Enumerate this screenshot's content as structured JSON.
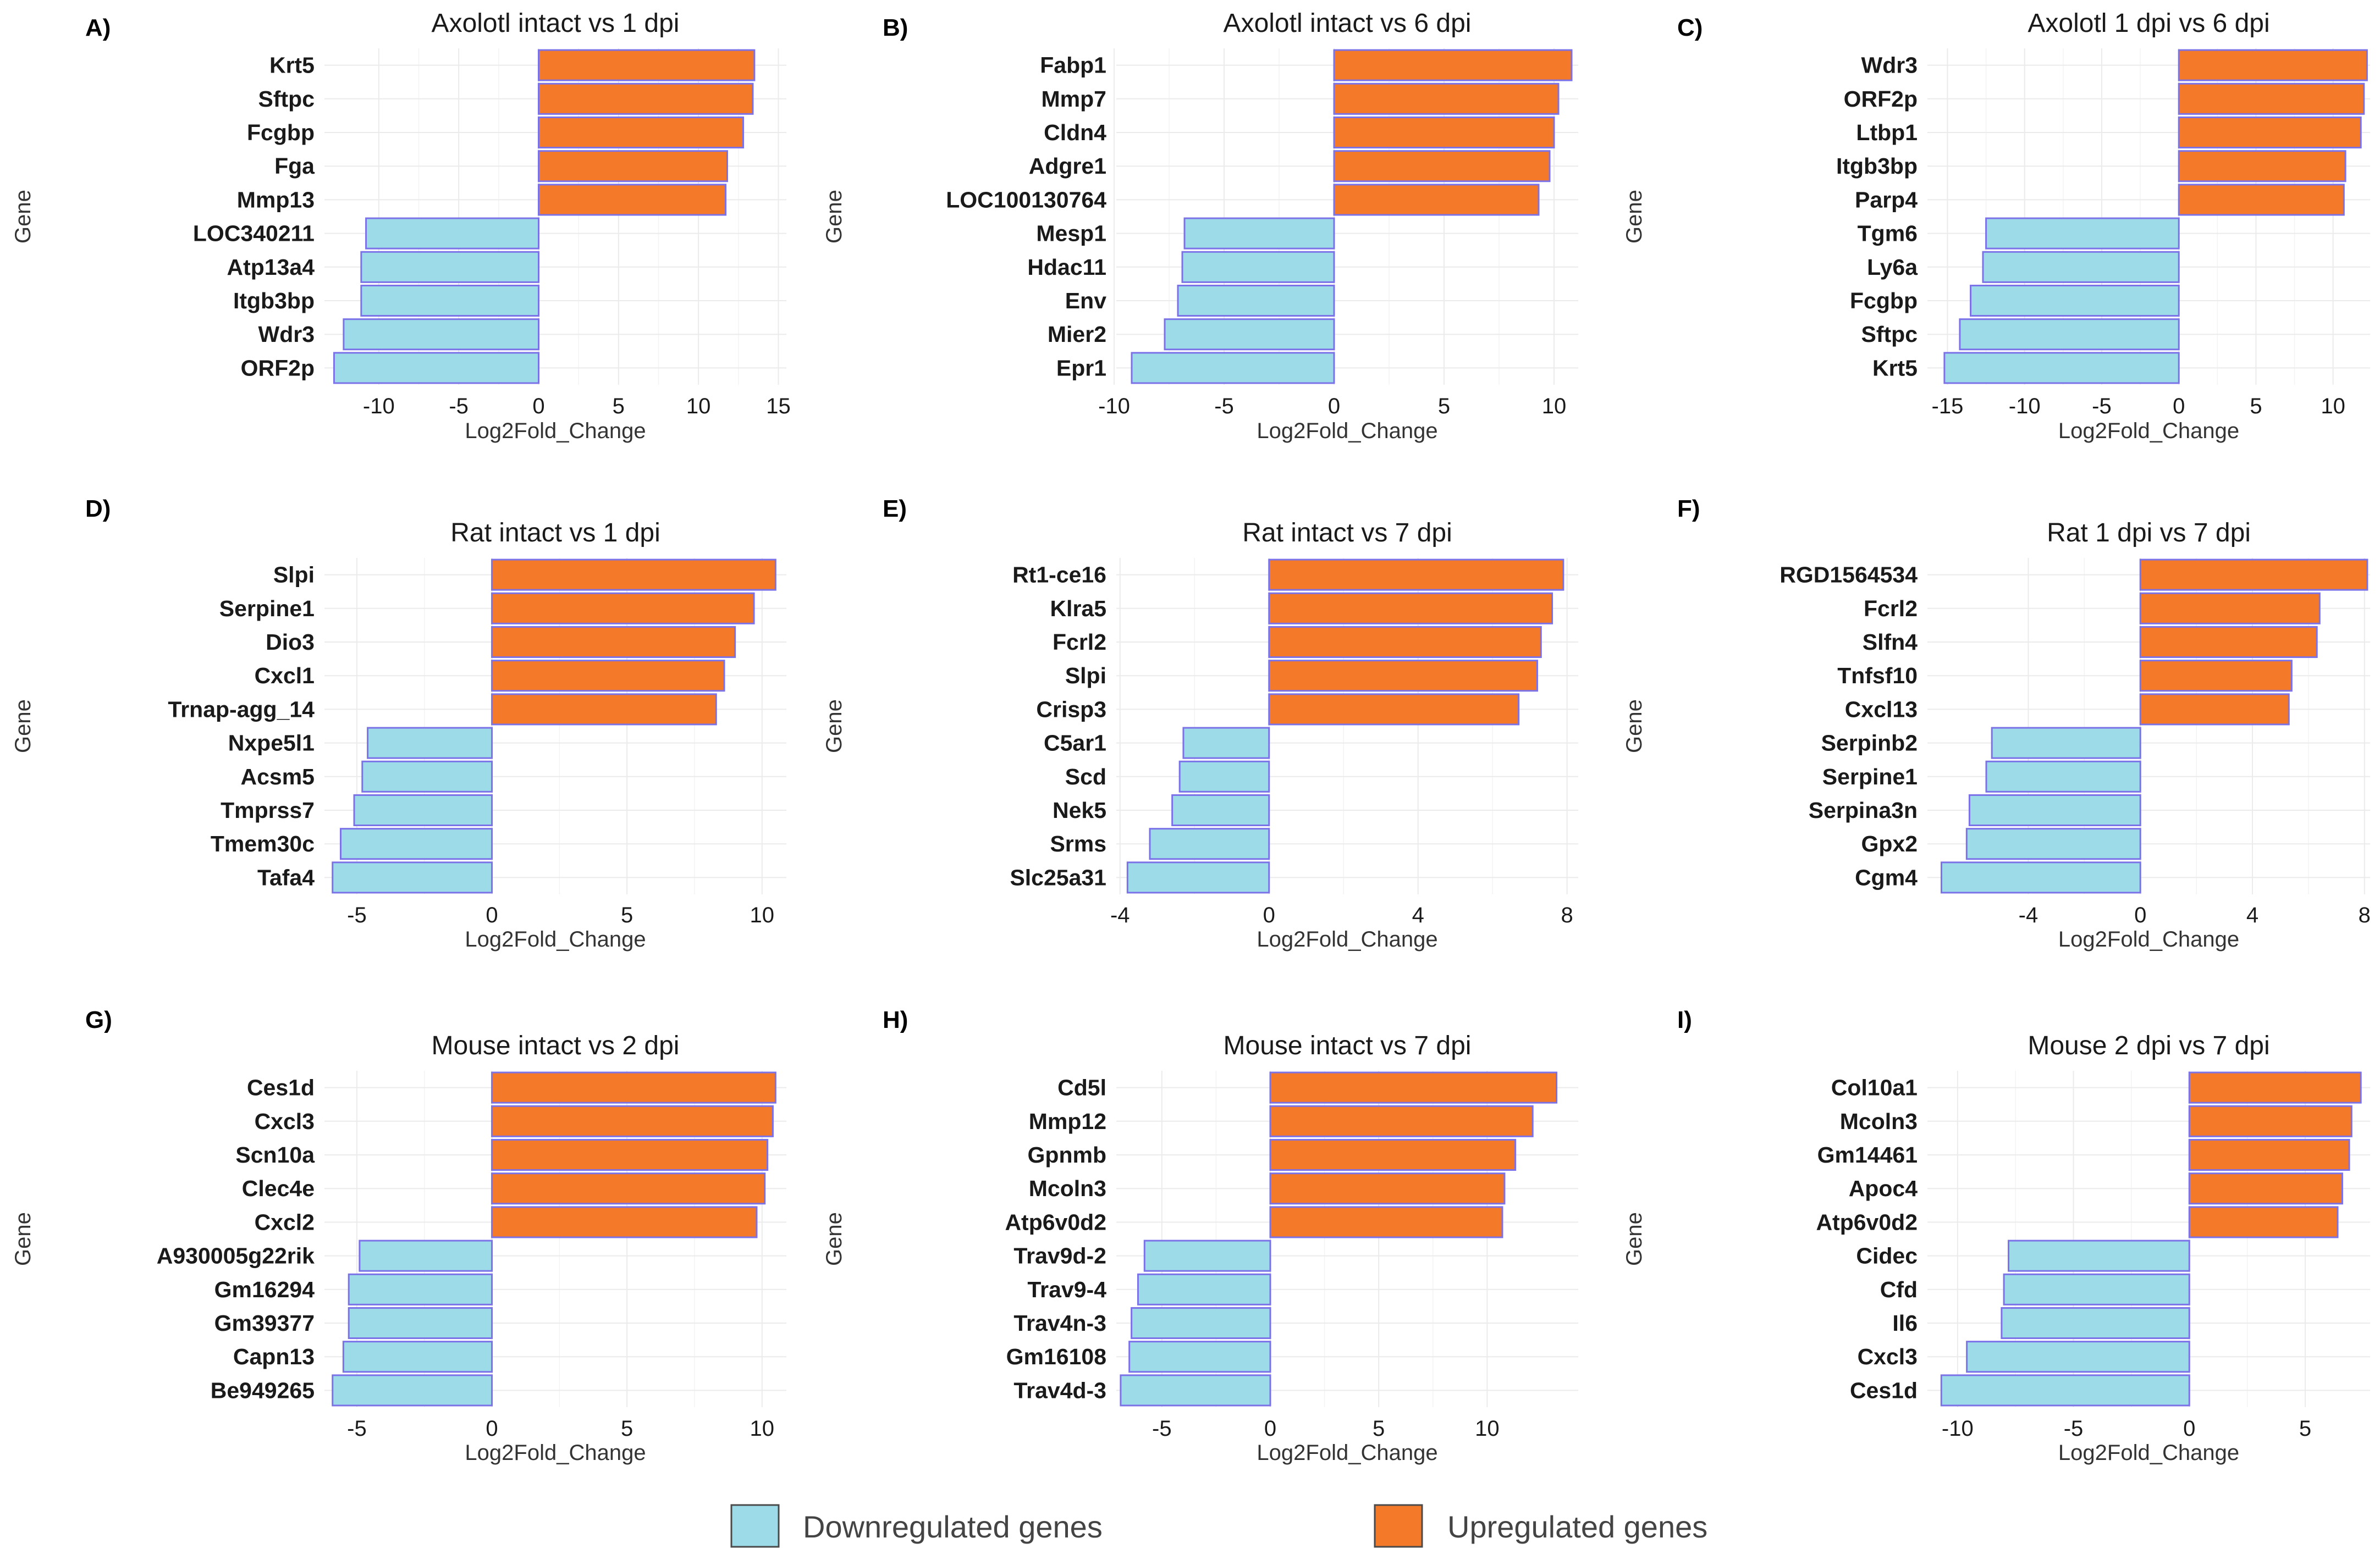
{
  "figure": {
    "legend": {
      "down_label": "Downregulated genes",
      "up_label": "Upregulated genes"
    },
    "colors": {
      "down": "#9edbe8",
      "up": "#f47a2a",
      "bar_stroke": "#7b72e8"
    }
  },
  "chart_data": [
    {
      "panel": "A)",
      "type": "bar",
      "orientation": "horizontal",
      "title": "Axolotl intact vs 1 dpi",
      "xlabel": "Log2Fold_Change",
      "ylabel": "Gene",
      "xlim": [
        -13.4,
        15.5
      ],
      "ticks": [
        -10,
        -5,
        0,
        5,
        10,
        15
      ],
      "categories": [
        "Krt5",
        "Sftpc",
        "Fcgbp",
        "Fga",
        "Mmp13",
        "LOC340211",
        "Atp13a4",
        "Itgb3bp",
        "Wdr3",
        "ORF2p"
      ],
      "values": [
        13.5,
        13.4,
        12.8,
        11.8,
        11.7,
        -10.8,
        -11.1,
        -11.1,
        -12.2,
        -12.8
      ]
    },
    {
      "panel": "B)",
      "type": "bar",
      "orientation": "horizontal",
      "title": "Axolotl intact vs 6 dpi",
      "xlabel": "Log2Fold_Change",
      "ylabel": "Gene",
      "xlim": [
        -9.9,
        11.1
      ],
      "ticks": [
        -10,
        -5,
        0,
        5,
        10
      ],
      "categories": [
        "Fabp1",
        "Mmp7",
        "Cldn4",
        "Adgre1",
        "LOC100130764",
        "Mesp1",
        "Hdac11",
        "Env",
        "Mier2",
        "Epr1"
      ],
      "values": [
        10.8,
        10.2,
        10.0,
        9.8,
        9.3,
        -6.8,
        -6.9,
        -7.1,
        -7.7,
        -9.2
      ]
    },
    {
      "panel": "C)",
      "type": "bar",
      "orientation": "horizontal",
      "title": "Axolotl 1 dpi vs 6 dpi",
      "xlabel": "Log2Fold_Change",
      "ylabel": "Gene",
      "xlim": [
        -16.3,
        12.4
      ],
      "ticks": [
        -15,
        -10,
        -5,
        0,
        5,
        10
      ],
      "categories": [
        "Wdr3",
        "ORF2p",
        "Ltbp1",
        "Itgb3bp",
        "Parp4",
        "Tgm6",
        "Ly6a",
        "Fcgbp",
        "Sftpc",
        "Krt5"
      ],
      "values": [
        12.2,
        12.0,
        11.8,
        10.8,
        10.7,
        -12.5,
        -12.7,
        -13.5,
        -14.2,
        -15.2
      ]
    },
    {
      "panel": "D)",
      "type": "bar",
      "orientation": "horizontal",
      "title": "Rat intact vs 1 dpi",
      "xlabel": "Log2Fold_Change",
      "ylabel": "Gene",
      "xlim": [
        -6.2,
        10.9
      ],
      "ticks": [
        -5,
        0,
        5,
        10
      ],
      "categories": [
        "Slpi",
        "Serpine1",
        "Dio3",
        "Cxcl1",
        "Trnap-agg_14",
        "Nxpe5l1",
        "Acsm5",
        "Tmprss7",
        "Tmem30c",
        "Tafa4"
      ],
      "values": [
        10.5,
        9.7,
        9.0,
        8.6,
        8.3,
        -4.6,
        -4.8,
        -5.1,
        -5.6,
        -5.9
      ]
    },
    {
      "panel": "E)",
      "type": "bar",
      "orientation": "horizontal",
      "title": "Rat intact vs 7 dpi",
      "xlabel": "Log2Fold_Change",
      "ylabel": "Gene",
      "xlim": [
        -4.1,
        8.3
      ],
      "ticks": [
        -4,
        0,
        4,
        8
      ],
      "categories": [
        "Rt1-ce16",
        "Klra5",
        "Fcrl2",
        "Slpi",
        "Crisp3",
        "C5ar1",
        "Scd",
        "Nek5",
        "Srms",
        "Slc25a31"
      ],
      "values": [
        7.9,
        7.6,
        7.3,
        7.2,
        6.7,
        -2.3,
        -2.4,
        -2.6,
        -3.2,
        -3.8
      ]
    },
    {
      "panel": "F)",
      "type": "bar",
      "orientation": "horizontal",
      "title": "Rat 1 dpi vs 7 dpi",
      "xlabel": "Log2Fold_Change",
      "ylabel": "Gene",
      "xlim": [
        -7.6,
        8.2
      ],
      "ticks": [
        -4,
        0,
        4,
        8
      ],
      "categories": [
        "RGD1564534",
        "Fcrl2",
        "Slfn4",
        "Tnfsf10",
        "Cxcl13",
        "Serpinb2",
        "Serpine1",
        "Serpina3n",
        "Gpx2",
        "Cgm4"
      ],
      "values": [
        8.1,
        6.4,
        6.3,
        5.4,
        5.3,
        -5.3,
        -5.5,
        -6.1,
        -6.2,
        -7.1
      ]
    },
    {
      "panel": "G)",
      "type": "bar",
      "orientation": "horizontal",
      "title": "Mouse intact vs 2 dpi",
      "xlabel": "Log2Fold_Change",
      "ylabel": "Gene",
      "xlim": [
        -6.2,
        10.9
      ],
      "ticks": [
        -5,
        0,
        5,
        10
      ],
      "categories": [
        "Ces1d",
        "Cxcl3",
        "Scn10a",
        "Clec4e",
        "Cxcl2",
        "A930005g22rik",
        "Gm16294",
        "Gm39377",
        "Capn13",
        "Be949265"
      ],
      "values": [
        10.5,
        10.4,
        10.2,
        10.1,
        9.8,
        -4.9,
        -5.3,
        -5.3,
        -5.5,
        -5.9
      ]
    },
    {
      "panel": "H)",
      "type": "bar",
      "orientation": "horizontal",
      "title": "Mouse intact vs 7 dpi",
      "xlabel": "Log2Fold_Change",
      "ylabel": "Gene",
      "xlim": [
        -7.1,
        14.2
      ],
      "ticks": [
        -5,
        0,
        5,
        10
      ],
      "categories": [
        "Cd5l",
        "Mmp12",
        "Gpnmb",
        "Mcoln3",
        "Atp6v0d2",
        "Trav9d-2",
        "Trav9-4",
        "Trav4n-3",
        "Gm16108",
        "Trav4d-3"
      ],
      "values": [
        13.2,
        12.1,
        11.3,
        10.8,
        10.7,
        -5.8,
        -6.1,
        -6.4,
        -6.5,
        -6.9
      ]
    },
    {
      "panel": "I)",
      "type": "bar",
      "orientation": "horizontal",
      "title": "Mouse 2 dpi vs 7 dpi",
      "xlabel": "Log2Fold_Change",
      "ylabel": "Gene",
      "xlim": [
        -11.3,
        7.8
      ],
      "ticks": [
        -10,
        -5,
        0,
        5
      ],
      "categories": [
        "Col10a1",
        "Mcoln3",
        "Gm14461",
        "Apoc4",
        "Atp6v0d2",
        "Cidec",
        "Cfd",
        "Il6",
        "Cxcl3",
        "Ces1d"
      ],
      "values": [
        7.4,
        7.0,
        6.9,
        6.6,
        6.4,
        -7.8,
        -8.0,
        -8.1,
        -9.6,
        -10.7
      ]
    }
  ]
}
